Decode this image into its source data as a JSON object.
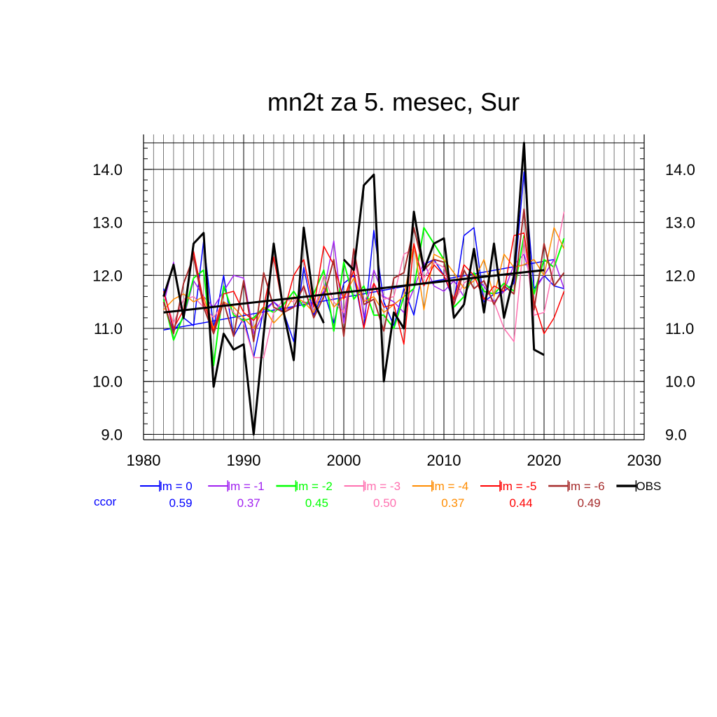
{
  "chart_data": {
    "type": "line",
    "title": "mn2t za 5. mesec, Sur",
    "xlabel": "",
    "ylabel": "",
    "xlim": [
      1980,
      2030
    ],
    "ylim": [
      8.9,
      14.5
    ],
    "x_ticks": [
      1980,
      1990,
      2000,
      2010,
      2020,
      2030
    ],
    "y_ticks": [
      9.0,
      10.0,
      11.0,
      12.0,
      13.0,
      14.0
    ],
    "grid": true,
    "legend_position": "bottom",
    "ccor_label": "ccor",
    "series": [
      {
        "name": "lm = 0",
        "color": "#0000ff",
        "ccor": "0.59",
        "width": 1.5,
        "x": [
          1982,
          1983,
          1984,
          1985,
          1986,
          1987,
          1988,
          1989,
          1990,
          1991,
          1992,
          1993,
          1994,
          1995,
          1996,
          1997,
          1998,
          1999,
          2000,
          2001,
          2002,
          2003,
          2004,
          2005,
          2006,
          2007,
          2008,
          2009,
          2010,
          2011,
          2012,
          2013,
          2014,
          2015,
          2016,
          2017,
          2018,
          2019,
          2020,
          2021,
          2022
        ],
        "values": [
          11.75,
          10.95,
          11.2,
          11.05,
          12.65,
          11.0,
          12.0,
          10.85,
          11.2,
          10.45,
          11.35,
          11.5,
          11.3,
          10.75,
          12.15,
          11.25,
          11.7,
          11.1,
          11.85,
          12.0,
          11.0,
          12.85,
          11.5,
          11.05,
          11.75,
          11.25,
          12.2,
          12.3,
          12.0,
          11.5,
          12.75,
          12.9,
          11.5,
          11.65,
          11.7,
          11.85,
          13.95,
          11.75,
          12.0,
          11.8,
          11.75
        ],
        "trend": {
          "x": [
            1982,
            2021
          ],
          "y": [
            10.97,
            12.3
          ]
        }
      },
      {
        "name": "lm = -1",
        "color": "#a020f0",
        "ccor": "0.37",
        "width": 1.5,
        "x": [
          1982,
          1983,
          1984,
          1985,
          1986,
          1987,
          1988,
          1989,
          1990,
          1991,
          1992,
          1993,
          1994,
          1995,
          1996,
          1997,
          1998,
          1999,
          2000,
          2001,
          2002,
          2003,
          2004,
          2005,
          2006,
          2007,
          2008,
          2009,
          2010,
          2011,
          2012,
          2013,
          2014,
          2015,
          2016,
          2017,
          2018,
          2019,
          2020,
          2021,
          2022
        ],
        "values": [
          11.45,
          12.25,
          11.2,
          11.9,
          11.6,
          11.4,
          11.7,
          12.0,
          11.95,
          10.9,
          11.3,
          11.5,
          11.35,
          11.4,
          11.5,
          11.45,
          11.7,
          12.65,
          11.1,
          12.5,
          11.2,
          12.1,
          11.6,
          11.5,
          11.3,
          11.75,
          12.25,
          11.8,
          11.7,
          11.9,
          11.6,
          12.0,
          11.8,
          11.5,
          11.7,
          12.2,
          12.4,
          11.7,
          12.0,
          12.3,
          11.75
        ]
      },
      {
        "name": "lm = -2",
        "color": "#00ff00",
        "ccor": "0.45",
        "width": 2,
        "x": [
          1982,
          1983,
          1984,
          1985,
          1986,
          1987,
          1988,
          1989,
          1990,
          1991,
          1992,
          1993,
          1994,
          1995,
          1996,
          1997,
          1998,
          1999,
          2000,
          2001,
          2002,
          2003,
          2004,
          2005,
          2006,
          2007,
          2008,
          2009,
          2010,
          2011,
          2012,
          2013,
          2014,
          2015,
          2016,
          2017,
          2018,
          2019,
          2020,
          2021,
          2022
        ],
        "values": [
          11.55,
          10.78,
          11.25,
          11.95,
          12.1,
          10.3,
          11.8,
          11.25,
          11.15,
          11.2,
          11.4,
          11.3,
          11.45,
          11.7,
          11.4,
          11.65,
          12.1,
          10.95,
          12.25,
          11.55,
          11.8,
          11.25,
          11.25,
          11.0,
          11.6,
          11.75,
          12.9,
          12.6,
          12.3,
          11.4,
          11.6,
          12.05,
          11.7,
          11.65,
          11.85,
          11.7,
          12.75,
          11.65,
          12.3,
          12.15,
          12.7
        ]
      },
      {
        "name": "lm = -3",
        "color": "#ff70b0",
        "ccor": "0.50",
        "width": 1.5,
        "x": [
          1982,
          1983,
          1984,
          1985,
          1986,
          1987,
          1988,
          1989,
          1990,
          1991,
          1992,
          1993,
          1994,
          1995,
          1996,
          1997,
          1998,
          1999,
          2000,
          2001,
          2002,
          2003,
          2004,
          2005,
          2006,
          2007,
          2008,
          2009,
          2010,
          2011,
          2012,
          2013,
          2014,
          2015,
          2016,
          2017,
          2018,
          2019,
          2020,
          2021,
          2022
        ],
        "values": [
          11.65,
          11.1,
          11.55,
          11.6,
          11.4,
          11.2,
          11.5,
          11.3,
          11.1,
          10.45,
          10.45,
          11.3,
          11.55,
          11.5,
          11.75,
          11.3,
          12.0,
          11.5,
          11.3,
          12.3,
          11.5,
          11.85,
          11.55,
          11.6,
          12.4,
          12.5,
          11.95,
          12.25,
          12.15,
          11.5,
          11.85,
          12.0,
          11.55,
          11.5,
          11.0,
          10.75,
          12.7,
          11.25,
          11.3,
          12.2,
          13.2
        ]
      },
      {
        "name": "lm = -4",
        "color": "#ff8c00",
        "ccor": "0.37",
        "width": 1.5,
        "x": [
          1982,
          1983,
          1984,
          1985,
          1986,
          1987,
          1988,
          1989,
          1990,
          1991,
          1992,
          1993,
          1994,
          1995,
          1996,
          1997,
          1998,
          1999,
          2000,
          2001,
          2002,
          2003,
          2004,
          2005,
          2006,
          2007,
          2008,
          2009,
          2010,
          2011,
          2012,
          2013,
          2014,
          2015,
          2016,
          2017,
          2018,
          2019,
          2020,
          2021,
          2022
        ],
        "values": [
          11.35,
          11.55,
          11.65,
          11.5,
          11.6,
          11.0,
          11.5,
          11.4,
          11.2,
          11.0,
          11.4,
          11.1,
          11.3,
          11.6,
          11.5,
          11.3,
          11.8,
          11.4,
          11.6,
          11.95,
          11.5,
          11.6,
          11.3,
          11.45,
          11.6,
          12.6,
          11.35,
          12.4,
          12.3,
          12.05,
          11.75,
          11.9,
          12.3,
          11.6,
          12.4,
          12.15,
          12.2,
          12.3,
          12.0,
          12.9,
          12.5
        ]
      },
      {
        "name": "lm = -5",
        "color": "#ff0000",
        "ccor": "0.44",
        "width": 1.5,
        "x": [
          1982,
          1983,
          1984,
          1985,
          1986,
          1987,
          1988,
          1989,
          1990,
          1991,
          1992,
          1993,
          1994,
          1995,
          1996,
          1997,
          1998,
          1999,
          2000,
          2001,
          2002,
          2003,
          2004,
          2005,
          2006,
          2007,
          2008,
          2009,
          2010,
          2011,
          2012,
          2013,
          2014,
          2015,
          2016,
          2017,
          2018,
          2019,
          2020,
          2021,
          2022
        ],
        "values": [
          11.7,
          11.0,
          11.35,
          12.45,
          11.5,
          10.95,
          11.65,
          11.7,
          11.3,
          11.15,
          11.4,
          12.35,
          11.3,
          12.0,
          12.3,
          11.4,
          12.55,
          12.2,
          11.55,
          12.1,
          11.0,
          11.85,
          11.4,
          11.45,
          10.7,
          12.6,
          11.8,
          12.2,
          12.0,
          11.55,
          12.2,
          12.0,
          11.55,
          11.8,
          11.7,
          12.75,
          12.8,
          11.5,
          10.9,
          11.2,
          11.7
        ]
      },
      {
        "name": "lm = -6",
        "color": "#a52a2a",
        "ccor": "0.49",
        "width": 2,
        "x": [
          1982,
          1983,
          1984,
          1985,
          1986,
          1987,
          1988,
          1989,
          1990,
          1991,
          1992,
          1993,
          1994,
          1995,
          1996,
          1997,
          1998,
          1999,
          2000,
          2001,
          2002,
          2003,
          2004,
          2005,
          2006,
          2007,
          2008,
          2009,
          2010,
          2011,
          2012,
          2013,
          2014,
          2015,
          2016,
          2017,
          2018,
          2019,
          2020,
          2021,
          2022
        ],
        "values": [
          11.5,
          10.9,
          11.85,
          12.35,
          11.4,
          10.9,
          11.5,
          10.85,
          11.9,
          10.75,
          12.05,
          11.4,
          11.3,
          11.4,
          11.8,
          11.2,
          11.6,
          12.3,
          10.85,
          12.5,
          11.45,
          11.55,
          10.95,
          11.95,
          12.05,
          12.9,
          12.1,
          12.3,
          12.25,
          11.45,
          12.1,
          11.75,
          11.9,
          11.45,
          11.8,
          11.65,
          13.25,
          11.35,
          12.6,
          11.8,
          12.05
        ]
      },
      {
        "name": "OBS",
        "color": "#000000",
        "ccor": "",
        "width": 3,
        "x": [
          1982,
          1983,
          1984,
          1985,
          1986,
          1987,
          1988,
          1989,
          1990,
          1991,
          1992,
          1993,
          1994,
          1995,
          1996,
          1997,
          1998,
          null,
          2000,
          2001,
          2002,
          2003,
          2004,
          2005,
          2006,
          2007,
          2008,
          2009,
          2010,
          2011,
          2012,
          2013,
          2014,
          2015,
          2016,
          2017,
          2018,
          2019,
          2020
        ],
        "values": [
          11.6,
          12.2,
          11.2,
          12.6,
          12.8,
          9.9,
          10.9,
          10.6,
          10.7,
          9.0,
          10.9,
          12.6,
          11.3,
          10.4,
          12.9,
          11.5,
          11.1,
          null,
          12.3,
          12.1,
          13.7,
          13.9,
          10.0,
          11.3,
          11.0,
          13.2,
          12.1,
          12.6,
          12.7,
          11.2,
          11.45,
          12.5,
          11.3,
          12.6,
          11.2,
          12.0,
          14.5,
          10.6,
          10.5
        ],
        "trend": {
          "x": [
            1982,
            2020
          ],
          "y": [
            11.3,
            12.1
          ]
        }
      }
    ]
  }
}
